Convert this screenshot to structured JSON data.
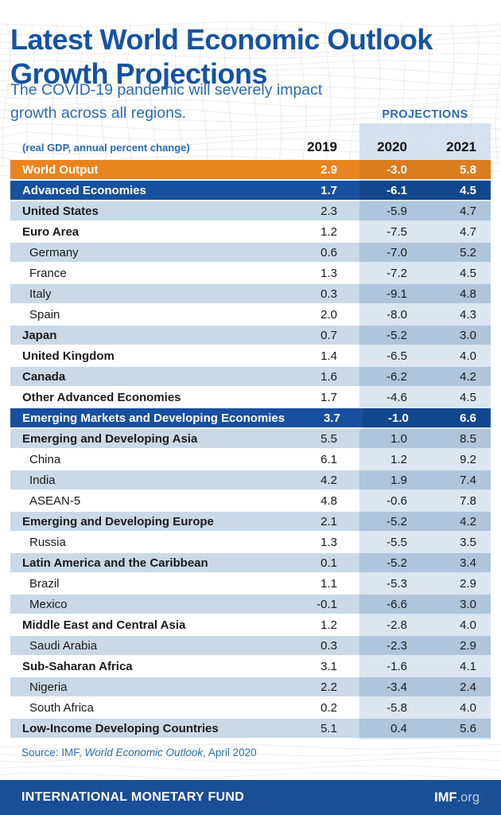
{
  "header": {
    "title_line1": "Latest World Economic Outlook",
    "title_line2": "Growth Projections",
    "subtitle": "The COVID-19 pandemic will severely impact growth across all regions.",
    "projections_label": "PROJECTIONS",
    "unit_note": "(real GDP, annual percent change)",
    "columns": [
      "2019",
      "2020",
      "2021"
    ]
  },
  "chart_data": {
    "type": "table",
    "title": "Latest World Economic Outlook Growth Projections",
    "subtitle": "The COVID-19 pandemic will severely impact growth across all regions.",
    "unit": "real GDP, annual percent change",
    "columns": [
      "2019",
      "2020",
      "2021"
    ],
    "projection_columns": [
      "2020",
      "2021"
    ],
    "rows": [
      {
        "label": "World Output",
        "values": [
          2.9,
          -3.0,
          5.8
        ],
        "variant": "orange",
        "bold": true,
        "indent": false
      },
      {
        "label": "Advanced Economies",
        "values": [
          1.7,
          -6.1,
          4.5
        ],
        "variant": "navy",
        "bold": true,
        "indent": false
      },
      {
        "label": "United States",
        "values": [
          2.3,
          -5.9,
          4.7
        ],
        "variant": "blue",
        "bold": true,
        "indent": false
      },
      {
        "label": "Euro Area",
        "values": [
          1.2,
          -7.5,
          4.7
        ],
        "variant": "white",
        "bold": true,
        "indent": false
      },
      {
        "label": "Germany",
        "values": [
          0.6,
          -7.0,
          5.2
        ],
        "variant": "blue",
        "bold": false,
        "indent": true
      },
      {
        "label": "France",
        "values": [
          1.3,
          -7.2,
          4.5
        ],
        "variant": "white",
        "bold": false,
        "indent": true
      },
      {
        "label": "Italy",
        "values": [
          0.3,
          -9.1,
          4.8
        ],
        "variant": "blue",
        "bold": false,
        "indent": true
      },
      {
        "label": "Spain",
        "values": [
          2.0,
          -8.0,
          4.3
        ],
        "variant": "white",
        "bold": false,
        "indent": true
      },
      {
        "label": "Japan",
        "values": [
          0.7,
          -5.2,
          3.0
        ],
        "variant": "blue",
        "bold": true,
        "indent": false
      },
      {
        "label": "United Kingdom",
        "values": [
          1.4,
          -6.5,
          4.0
        ],
        "variant": "white",
        "bold": true,
        "indent": false
      },
      {
        "label": "Canada",
        "values": [
          1.6,
          -6.2,
          4.2
        ],
        "variant": "blue",
        "bold": true,
        "indent": false
      },
      {
        "label": "Other Advanced Economies",
        "values": [
          1.7,
          -4.6,
          4.5
        ],
        "variant": "white",
        "bold": true,
        "indent": false
      },
      {
        "label": "Emerging Markets and Developing Economies",
        "values": [
          3.7,
          -1.0,
          6.6
        ],
        "variant": "navy",
        "bold": true,
        "indent": false
      },
      {
        "label": "Emerging and Developing Asia",
        "values": [
          5.5,
          1.0,
          8.5
        ],
        "variant": "blue",
        "bold": true,
        "indent": false
      },
      {
        "label": "China",
        "values": [
          6.1,
          1.2,
          9.2
        ],
        "variant": "white",
        "bold": false,
        "indent": true
      },
      {
        "label": "India",
        "values": [
          4.2,
          1.9,
          7.4
        ],
        "variant": "blue",
        "bold": false,
        "indent": true
      },
      {
        "label": "ASEAN-5",
        "values": [
          4.8,
          -0.6,
          7.8
        ],
        "variant": "white",
        "bold": false,
        "indent": true
      },
      {
        "label": "Emerging and Developing Europe",
        "values": [
          2.1,
          -5.2,
          4.2
        ],
        "variant": "blue",
        "bold": true,
        "indent": false
      },
      {
        "label": "Russia",
        "values": [
          1.3,
          -5.5,
          3.5
        ],
        "variant": "white",
        "bold": false,
        "indent": true
      },
      {
        "label": "Latin America and the Caribbean",
        "values": [
          0.1,
          -5.2,
          3.4
        ],
        "variant": "blue",
        "bold": true,
        "indent": false
      },
      {
        "label": "Brazil",
        "values": [
          1.1,
          -5.3,
          2.9
        ],
        "variant": "white",
        "bold": false,
        "indent": true
      },
      {
        "label": "Mexico",
        "values": [
          -0.1,
          -6.6,
          3.0
        ],
        "variant": "blue",
        "bold": false,
        "indent": true
      },
      {
        "label": "Middle East and Central Asia",
        "values": [
          1.2,
          -2.8,
          4.0
        ],
        "variant": "white",
        "bold": true,
        "indent": false
      },
      {
        "label": "Saudi Arabia",
        "values": [
          0.3,
          -2.3,
          2.9
        ],
        "variant": "blue",
        "bold": false,
        "indent": true
      },
      {
        "label": "Sub-Saharan Africa",
        "values": [
          3.1,
          -1.6,
          4.1
        ],
        "variant": "white",
        "bold": true,
        "indent": false
      },
      {
        "label": "Nigeria",
        "values": [
          2.2,
          -3.4,
          2.4
        ],
        "variant": "blue",
        "bold": false,
        "indent": true
      },
      {
        "label": "South Africa",
        "values": [
          0.2,
          -5.8,
          4.0
        ],
        "variant": "white",
        "bold": false,
        "indent": true
      },
      {
        "label": "Low-Income Developing Countries",
        "values": [
          5.1,
          0.4,
          5.6
        ],
        "variant": "blue",
        "bold": true,
        "indent": false
      }
    ]
  },
  "source": {
    "prefix": "Source: IMF, ",
    "italic": "World Economic Outlook",
    "suffix": ", April 2020"
  },
  "footer": {
    "org_name": "INTERNATIONAL MONETARY FUND",
    "url_bold": "IMF",
    "url_rest": ".org"
  },
  "colors": {
    "title_blue": "#1553A0",
    "accent_blue": "#2A6CB0",
    "highlight_orange": "#E8851F",
    "highlight_orange_shaded": "#DA7D1E",
    "highlight_navy": "#17509E",
    "highlight_navy_shaded": "#13478C",
    "row_light_blue": "#C9D9E8",
    "row_light_blue_shaded": "#AEC5DB",
    "row_white": "#FFFFFF",
    "row_white_shaded": "#DCE6F1",
    "footer_bg": "#1A4E96",
    "footer_url_rest": "#BFCDDF"
  }
}
